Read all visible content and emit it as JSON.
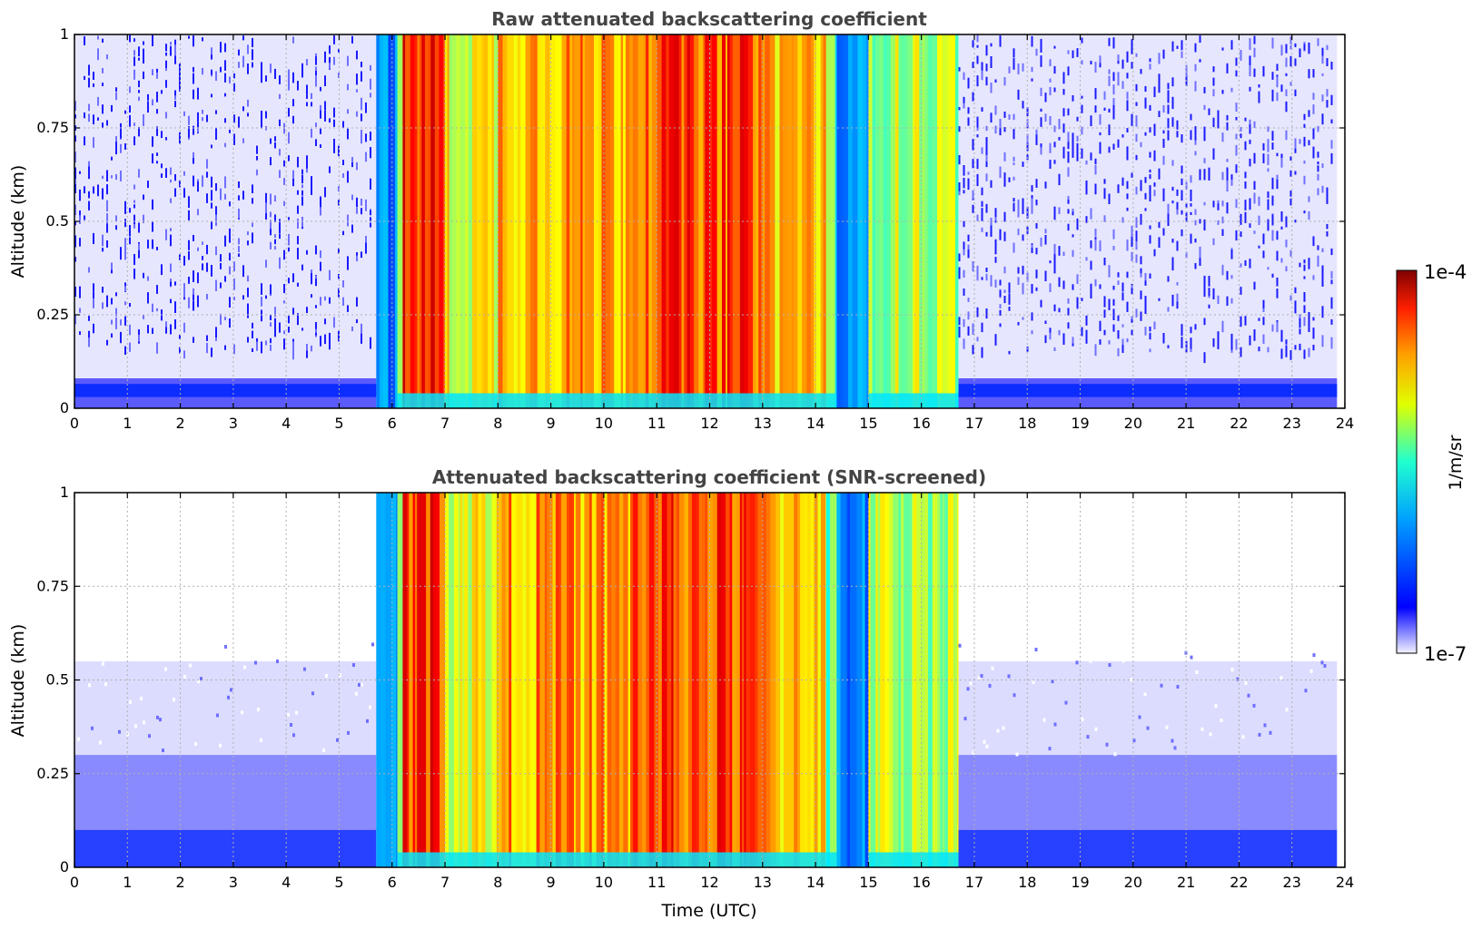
{
  "figure": {
    "colorbar": {
      "max_label": "1e-4",
      "min_label": "1e-7",
      "unit_label": "1/m/sr",
      "colormap": "jet",
      "scale": "log"
    }
  },
  "chart_data": [
    {
      "type": "heatmap",
      "title": "Raw attenuated backscattering coefficient",
      "xlabel": "",
      "ylabel": "Altitude (km)",
      "xlim": [
        0,
        24
      ],
      "ylim": [
        0,
        1
      ],
      "x_ticks": [
        "0",
        "1",
        "2",
        "3",
        "4",
        "5",
        "6",
        "7",
        "8",
        "9",
        "10",
        "11",
        "12",
        "13",
        "14",
        "15",
        "16",
        "17",
        "18",
        "19",
        "20",
        "21",
        "22",
        "23",
        "24"
      ],
      "y_ticks": [
        "0",
        "0.25",
        "0.5",
        "0.75",
        "1"
      ],
      "grid": true,
      "segments": [
        {
          "t_start": 0.0,
          "t_end": 5.7,
          "regime": "noise",
          "level": 0.22
        },
        {
          "t_start": 5.7,
          "t_end": 6.1,
          "regime": "transition",
          "level": 0.25
        },
        {
          "t_start": 6.1,
          "t_end": 6.2,
          "regime": "signal",
          "level": 0.55
        },
        {
          "t_start": 6.2,
          "t_end": 7.0,
          "regime": "signal",
          "level": 0.83
        },
        {
          "t_start": 7.0,
          "t_end": 8.0,
          "regime": "signal",
          "level": 0.62
        },
        {
          "t_start": 8.0,
          "t_end": 10.5,
          "regime": "signal",
          "level": 0.72
        },
        {
          "t_start": 10.5,
          "t_end": 13.0,
          "regime": "signal",
          "level": 0.8
        },
        {
          "t_start": 13.0,
          "t_end": 14.2,
          "regime": "signal",
          "level": 0.7
        },
        {
          "t_start": 14.2,
          "t_end": 14.4,
          "regime": "signal",
          "level": 0.45
        },
        {
          "t_start": 14.4,
          "t_end": 15.0,
          "regime": "transition",
          "level": 0.25
        },
        {
          "t_start": 15.0,
          "t_end": 16.7,
          "regime": "signal",
          "level": 0.55
        },
        {
          "t_start": 16.7,
          "t_end": 23.85,
          "regime": "noise",
          "level": 0.22
        }
      ]
    },
    {
      "type": "heatmap",
      "title": "Attenuated backscattering coefficient (SNR-screened)",
      "xlabel": "Time (UTC)",
      "ylabel": "Altitude (km)",
      "xlim": [
        0,
        24
      ],
      "ylim": [
        0,
        1
      ],
      "x_ticks": [
        "0",
        "1",
        "2",
        "3",
        "4",
        "5",
        "6",
        "7",
        "8",
        "9",
        "10",
        "11",
        "12",
        "13",
        "14",
        "15",
        "16",
        "17",
        "18",
        "19",
        "20",
        "21",
        "22",
        "23",
        "24"
      ],
      "y_ticks": [
        "0",
        "0.25",
        "0.5",
        "0.75",
        "1"
      ],
      "grid": true,
      "segments": [
        {
          "t_start": 0.0,
          "t_end": 5.7,
          "regime": "screened",
          "level": 0.2
        },
        {
          "t_start": 5.7,
          "t_end": 6.1,
          "regime": "transition",
          "level": 0.25
        },
        {
          "t_start": 6.1,
          "t_end": 6.2,
          "regime": "signal",
          "level": 0.55
        },
        {
          "t_start": 6.2,
          "t_end": 7.0,
          "regime": "signal",
          "level": 0.83
        },
        {
          "t_start": 7.0,
          "t_end": 8.0,
          "regime": "signal",
          "level": 0.62
        },
        {
          "t_start": 8.0,
          "t_end": 10.5,
          "regime": "signal",
          "level": 0.72
        },
        {
          "t_start": 10.5,
          "t_end": 13.0,
          "regime": "signal",
          "level": 0.8
        },
        {
          "t_start": 13.0,
          "t_end": 14.2,
          "regime": "signal",
          "level": 0.7
        },
        {
          "t_start": 14.2,
          "t_end": 14.4,
          "regime": "signal",
          "level": 0.45
        },
        {
          "t_start": 14.4,
          "t_end": 15.0,
          "regime": "transition",
          "level": 0.25
        },
        {
          "t_start": 15.0,
          "t_end": 16.7,
          "regime": "signal",
          "level": 0.55
        },
        {
          "t_start": 16.7,
          "t_end": 23.85,
          "regime": "screened",
          "level": 0.2
        }
      ]
    }
  ]
}
